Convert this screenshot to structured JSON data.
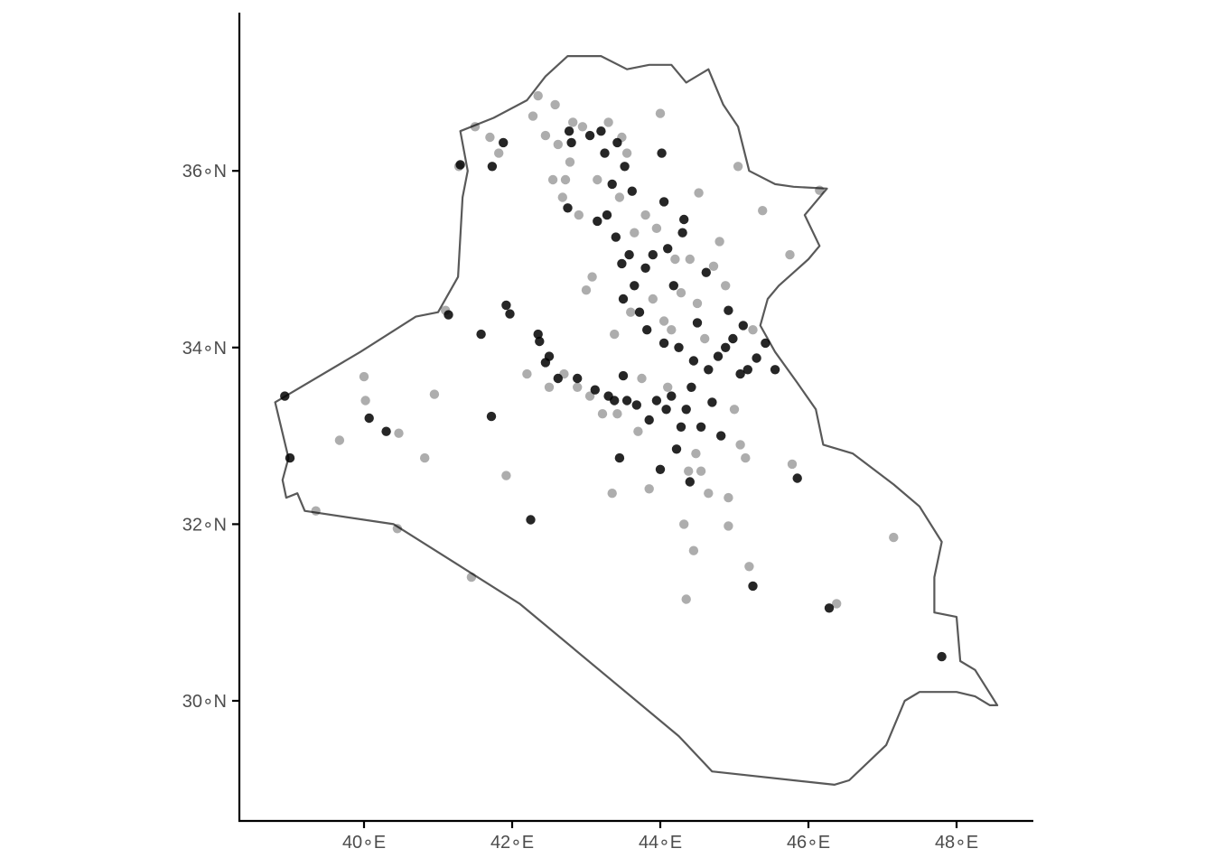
{
  "chart_data": {
    "type": "scatter",
    "title": "",
    "xlabel": "",
    "ylabel": "",
    "xlim": [
      38.3,
      49.0
    ],
    "ylim": [
      28.85,
      37.75
    ],
    "x_ticks": [
      {
        "value": 40,
        "label": "40∘E"
      },
      {
        "value": 42,
        "label": "42∘E"
      },
      {
        "value": 44,
        "label": "44∘E"
      },
      {
        "value": 46,
        "label": "46∘E"
      },
      {
        "value": 48,
        "label": "48∘E"
      }
    ],
    "y_ticks": [
      {
        "value": 30,
        "label": "30∘N"
      },
      {
        "value": 32,
        "label": "32∘N"
      },
      {
        "value": 34,
        "label": "34∘N"
      },
      {
        "value": 36,
        "label": "36∘N"
      }
    ],
    "colors": {
      "point": "#000000",
      "border": "#595959",
      "axis": "#000000",
      "tick_label": "#4d4d4d"
    },
    "boundary": {
      "name": "Iraq outline",
      "coords": [
        [
          38.8,
          33.38
        ],
        [
          39.95,
          33.95
        ],
        [
          40.7,
          34.35
        ],
        [
          41.0,
          34.4
        ],
        [
          41.27,
          34.8
        ],
        [
          41.33,
          35.7
        ],
        [
          41.4,
          36.0
        ],
        [
          41.3,
          36.45
        ],
        [
          41.75,
          36.6
        ],
        [
          42.2,
          36.8
        ],
        [
          42.45,
          37.07
        ],
        [
          42.75,
          37.3
        ],
        [
          43.2,
          37.3
        ],
        [
          43.55,
          37.15
        ],
        [
          43.85,
          37.2
        ],
        [
          44.15,
          37.2
        ],
        [
          44.35,
          37.0
        ],
        [
          44.65,
          37.15
        ],
        [
          44.85,
          36.75
        ],
        [
          45.05,
          36.5
        ],
        [
          45.2,
          36.0
        ],
        [
          45.55,
          35.85
        ],
        [
          45.8,
          35.82
        ],
        [
          46.25,
          35.8
        ],
        [
          46.05,
          35.6
        ],
        [
          45.95,
          35.5
        ],
        [
          46.15,
          35.15
        ],
        [
          46.0,
          35.0
        ],
        [
          45.8,
          34.85
        ],
        [
          45.6,
          34.7
        ],
        [
          45.45,
          34.55
        ],
        [
          45.35,
          34.25
        ],
        [
          45.55,
          33.95
        ],
        [
          45.85,
          33.6
        ],
        [
          46.1,
          33.3
        ],
        [
          46.2,
          32.9
        ],
        [
          46.6,
          32.8
        ],
        [
          47.15,
          32.45
        ],
        [
          47.5,
          32.2
        ],
        [
          47.8,
          31.8
        ],
        [
          47.7,
          31.4
        ],
        [
          47.7,
          31.0
        ],
        [
          48.0,
          30.95
        ],
        [
          48.05,
          30.45
        ],
        [
          48.25,
          30.35
        ],
        [
          48.4,
          30.15
        ],
        [
          48.55,
          29.95
        ],
        [
          48.45,
          29.95
        ],
        [
          48.25,
          30.05
        ],
        [
          48.0,
          30.1
        ],
        [
          47.5,
          30.1
        ],
        [
          47.3,
          30.0
        ],
        [
          47.05,
          29.5
        ],
        [
          46.55,
          29.1
        ],
        [
          46.35,
          29.05
        ],
        [
          44.7,
          29.2
        ],
        [
          44.25,
          29.6
        ],
        [
          42.1,
          31.1
        ],
        [
          40.4,
          32.0
        ],
        [
          39.2,
          32.15
        ],
        [
          39.1,
          32.35
        ],
        [
          38.95,
          32.3
        ],
        [
          38.9,
          32.5
        ],
        [
          38.98,
          32.75
        ],
        [
          38.8,
          33.38
        ]
      ]
    },
    "series": [
      {
        "name": "events (dark)",
        "opacity": 0.85,
        "points": [
          [
            38.93,
            33.45
          ],
          [
            39.0,
            32.75
          ],
          [
            40.07,
            33.2
          ],
          [
            40.3,
            33.05
          ],
          [
            41.14,
            34.37
          ],
          [
            41.3,
            36.07
          ],
          [
            41.58,
            34.15
          ],
          [
            41.72,
            33.22
          ],
          [
            41.73,
            36.05
          ],
          [
            41.88,
            36.32
          ],
          [
            41.92,
            34.48
          ],
          [
            41.97,
            34.38
          ],
          [
            42.25,
            32.05
          ],
          [
            42.35,
            34.15
          ],
          [
            42.37,
            34.07
          ],
          [
            42.45,
            33.83
          ],
          [
            42.5,
            33.9
          ],
          [
            42.62,
            33.65
          ],
          [
            42.77,
            36.45
          ],
          [
            42.8,
            36.32
          ],
          [
            42.75,
            35.58
          ],
          [
            42.88,
            33.65
          ],
          [
            43.05,
            36.4
          ],
          [
            43.12,
            33.52
          ],
          [
            43.15,
            35.43
          ],
          [
            43.2,
            36.45
          ],
          [
            43.25,
            36.2
          ],
          [
            43.28,
            35.5
          ],
          [
            43.3,
            33.45
          ],
          [
            43.35,
            35.85
          ],
          [
            43.38,
            33.4
          ],
          [
            43.4,
            35.25
          ],
          [
            43.42,
            36.32
          ],
          [
            43.45,
            32.75
          ],
          [
            43.48,
            34.95
          ],
          [
            43.5,
            33.68
          ],
          [
            43.5,
            34.55
          ],
          [
            43.52,
            36.05
          ],
          [
            43.55,
            33.4
          ],
          [
            43.58,
            35.05
          ],
          [
            43.62,
            35.77
          ],
          [
            43.65,
            34.7
          ],
          [
            43.68,
            33.35
          ],
          [
            43.72,
            34.4
          ],
          [
            43.8,
            34.9
          ],
          [
            43.82,
            34.2
          ],
          [
            43.85,
            33.18
          ],
          [
            43.9,
            35.05
          ],
          [
            43.95,
            33.4
          ],
          [
            44.0,
            32.62
          ],
          [
            44.02,
            36.2
          ],
          [
            44.05,
            35.65
          ],
          [
            44.05,
            34.05
          ],
          [
            44.08,
            33.3
          ],
          [
            44.1,
            35.12
          ],
          [
            44.15,
            33.45
          ],
          [
            44.18,
            34.7
          ],
          [
            44.22,
            32.85
          ],
          [
            44.25,
            34.0
          ],
          [
            44.28,
            33.1
          ],
          [
            44.3,
            35.3
          ],
          [
            44.32,
            35.45
          ],
          [
            44.35,
            33.3
          ],
          [
            44.4,
            32.48
          ],
          [
            44.42,
            33.55
          ],
          [
            44.45,
            33.85
          ],
          [
            44.5,
            34.28
          ],
          [
            44.55,
            33.1
          ],
          [
            44.62,
            34.85
          ],
          [
            44.65,
            33.75
          ],
          [
            44.7,
            33.38
          ],
          [
            44.78,
            33.9
          ],
          [
            44.82,
            33.0
          ],
          [
            44.88,
            34.0
          ],
          [
            44.92,
            34.42
          ],
          [
            44.98,
            34.1
          ],
          [
            45.08,
            33.7
          ],
          [
            45.12,
            34.25
          ],
          [
            45.18,
            33.75
          ],
          [
            45.3,
            33.88
          ],
          [
            45.42,
            34.05
          ],
          [
            45.55,
            33.75
          ],
          [
            45.25,
            31.3
          ],
          [
            45.85,
            32.52
          ],
          [
            46.28,
            31.05
          ],
          [
            47.8,
            30.5
          ]
        ]
      },
      {
        "name": "events (light)",
        "opacity": 0.32,
        "points": [
          [
            39.67,
            32.95
          ],
          [
            40.0,
            33.67
          ],
          [
            40.02,
            33.4
          ],
          [
            40.47,
            33.03
          ],
          [
            40.82,
            32.75
          ],
          [
            40.95,
            33.47
          ],
          [
            41.1,
            34.42
          ],
          [
            41.28,
            36.05
          ],
          [
            41.45,
            31.4
          ],
          [
            41.5,
            36.5
          ],
          [
            41.7,
            36.38
          ],
          [
            41.82,
            36.2
          ],
          [
            41.92,
            32.55
          ],
          [
            42.2,
            33.7
          ],
          [
            42.28,
            36.62
          ],
          [
            42.35,
            36.85
          ],
          [
            42.45,
            36.4
          ],
          [
            42.5,
            33.55
          ],
          [
            42.55,
            35.9
          ],
          [
            42.58,
            36.75
          ],
          [
            42.62,
            36.3
          ],
          [
            42.68,
            35.7
          ],
          [
            42.7,
            33.7
          ],
          [
            42.72,
            35.9
          ],
          [
            42.78,
            36.1
          ],
          [
            42.82,
            36.55
          ],
          [
            42.88,
            33.55
          ],
          [
            42.9,
            35.5
          ],
          [
            42.95,
            36.5
          ],
          [
            43.0,
            34.65
          ],
          [
            43.05,
            33.45
          ],
          [
            43.08,
            34.8
          ],
          [
            43.15,
            35.9
          ],
          [
            43.22,
            33.25
          ],
          [
            43.3,
            36.55
          ],
          [
            43.35,
            32.35
          ],
          [
            43.38,
            34.15
          ],
          [
            43.42,
            33.25
          ],
          [
            43.45,
            35.7
          ],
          [
            43.48,
            36.38
          ],
          [
            43.55,
            36.2
          ],
          [
            43.6,
            34.4
          ],
          [
            43.65,
            35.3
          ],
          [
            43.7,
            33.05
          ],
          [
            43.75,
            33.65
          ],
          [
            43.8,
            35.5
          ],
          [
            43.85,
            32.4
          ],
          [
            43.9,
            34.55
          ],
          [
            43.95,
            35.35
          ],
          [
            44.0,
            36.65
          ],
          [
            44.05,
            34.3
          ],
          [
            44.1,
            33.55
          ],
          [
            44.15,
            34.2
          ],
          [
            44.2,
            35.0
          ],
          [
            44.28,
            34.62
          ],
          [
            44.32,
            32.0
          ],
          [
            44.35,
            31.15
          ],
          [
            44.38,
            32.6
          ],
          [
            44.4,
            35.0
          ],
          [
            44.45,
            31.7
          ],
          [
            44.48,
            32.8
          ],
          [
            44.5,
            34.5
          ],
          [
            44.52,
            35.75
          ],
          [
            44.55,
            32.6
          ],
          [
            44.6,
            34.1
          ],
          [
            44.65,
            32.35
          ],
          [
            44.72,
            34.92
          ],
          [
            44.8,
            35.2
          ],
          [
            44.88,
            34.7
          ],
          [
            44.92,
            32.3
          ],
          [
            44.92,
            31.98
          ],
          [
            45.0,
            33.3
          ],
          [
            45.05,
            36.05
          ],
          [
            45.08,
            32.9
          ],
          [
            45.15,
            32.75
          ],
          [
            45.2,
            31.52
          ],
          [
            45.25,
            34.2
          ],
          [
            45.38,
            35.55
          ],
          [
            45.75,
            35.05
          ],
          [
            45.78,
            32.68
          ],
          [
            46.38,
            31.1
          ],
          [
            47.15,
            31.85
          ],
          [
            46.15,
            35.78
          ],
          [
            39.35,
            32.15
          ],
          [
            40.45,
            31.95
          ]
        ]
      }
    ]
  }
}
